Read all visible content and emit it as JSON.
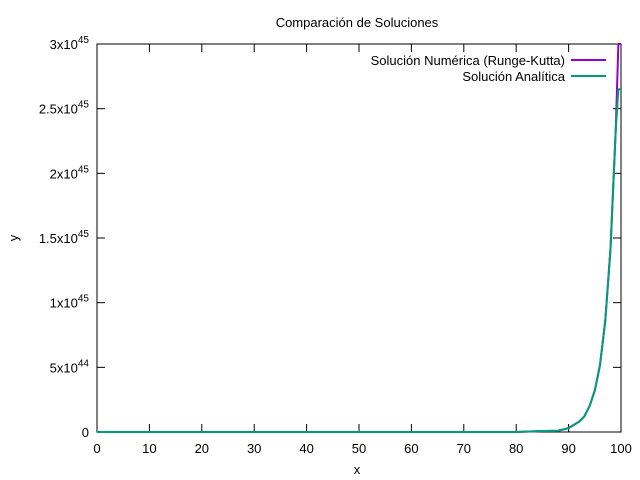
{
  "chart_data": {
    "type": "line",
    "title": "Comparación de Soluciones",
    "xlabel": "x",
    "ylabel": "y",
    "xlim": [
      0,
      100
    ],
    "ylim": [
      0,
      3e+45
    ],
    "grid": false,
    "legend_position": "top-right",
    "x_ticks": [
      {
        "value": 0,
        "label": "0"
      },
      {
        "value": 10,
        "label": "10"
      },
      {
        "value": 20,
        "label": "20"
      },
      {
        "value": 30,
        "label": "30"
      },
      {
        "value": 40,
        "label": "40"
      },
      {
        "value": 50,
        "label": "50"
      },
      {
        "value": 60,
        "label": "60"
      },
      {
        "value": 70,
        "label": "70"
      },
      {
        "value": 80,
        "label": "80"
      },
      {
        "value": 90,
        "label": "90"
      },
      {
        "value": 100,
        "label": "100"
      }
    ],
    "y_ticks": [
      {
        "value": 0,
        "mantissa": "0",
        "exponent": ""
      },
      {
        "value": 5e+44,
        "mantissa": "5x10",
        "exponent": "44"
      },
      {
        "value": 1e+45,
        "mantissa": "1x10",
        "exponent": "45"
      },
      {
        "value": 1.5e+45,
        "mantissa": "1.5x10",
        "exponent": "45"
      },
      {
        "value": 2e+45,
        "mantissa": "2x10",
        "exponent": "45"
      },
      {
        "value": 2.5e+45,
        "mantissa": "2.5x10",
        "exponent": "45"
      },
      {
        "value": 3e+45,
        "mantissa": "3x10",
        "exponent": "45"
      }
    ],
    "series": [
      {
        "name": "Solución Numérica (Runge-Kutta)",
        "color": "#9400d3",
        "x": [
          0,
          10,
          20,
          30,
          40,
          50,
          60,
          70,
          80,
          85,
          88,
          90,
          92,
          93,
          94,
          95,
          96,
          97,
          98,
          99,
          99.5,
          100
        ],
        "y": [
          0,
          0,
          0,
          0,
          0,
          0,
          0,
          0,
          0,
          8e+42,
          1e+43,
          3e+43,
          8e+43,
          1.2e+44,
          2e+44,
          3.2e+44,
          5.2e+44,
          8.6e+44,
          1.42e+45,
          2.34e+45,
          3e+45,
          3e+45
        ]
      },
      {
        "name": "Solución Analítica",
        "color": "#009e73",
        "x": [
          0,
          10,
          20,
          30,
          40,
          50,
          60,
          70,
          80,
          85,
          88,
          90,
          92,
          93,
          94,
          95,
          96,
          97,
          98,
          99,
          99.5,
          100
        ],
        "y": [
          0,
          0,
          0,
          0,
          0,
          0,
          0,
          0,
          0,
          8e+42,
          1e+43,
          3e+43,
          8e+43,
          1.2e+44,
          2e+44,
          3.2e+44,
          5.2e+44,
          8.6e+44,
          1.42e+45,
          2.34e+45,
          2.65e+45,
          2.65e+45
        ]
      }
    ]
  }
}
